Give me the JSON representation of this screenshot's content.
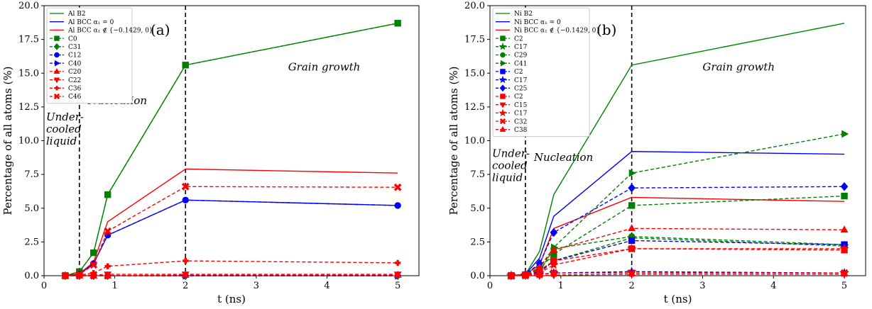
{
  "chart_data": [
    {
      "type": "line",
      "panel_label": "(a)",
      "xlabel": "t (ns)",
      "ylabel": "Percentage of all atoms (%)",
      "xlim": [
        0,
        5.3
      ],
      "ylim": [
        0,
        20
      ],
      "xticks": [
        0,
        1,
        2,
        3,
        4,
        5
      ],
      "yticks": [
        0.0,
        2.5,
        5.0,
        7.5,
        10.0,
        12.5,
        15.0,
        17.5,
        20.0
      ],
      "vlines": [
        0.5,
        2.0
      ],
      "annotations": [
        {
          "lines": [
            "Under-",
            "cooled",
            "liquid"
          ],
          "x": 0.03,
          "y": 11.5
        },
        {
          "lines": [
            "Nucleation"
          ],
          "x": 0.62,
          "y": 12.7
        },
        {
          "lines": [
            "Grain growth"
          ],
          "x": 3.45,
          "y": 15.2
        }
      ],
      "legend_position": "top-left",
      "series": [
        {
          "name": "Al B2",
          "color": "#008000",
          "dash": false,
          "marker": "none",
          "x": [
            0.3,
            0.5,
            0.7,
            0.9,
            2,
            5
          ],
          "y": [
            0,
            0.3,
            1.7,
            6.0,
            15.6,
            18.7
          ]
        },
        {
          "name": "Al BCC α₁ = 0",
          "color": "#0000ff",
          "dash": false,
          "marker": "none",
          "x": [
            0.3,
            0.5,
            0.7,
            0.9,
            2,
            5
          ],
          "y": [
            0,
            0.1,
            0.9,
            3.0,
            5.6,
            5.2
          ]
        },
        {
          "name": "Al BCC α₁ ∉ {−0.1429, 0}",
          "color": "#ff0000",
          "dash": false,
          "marker": "none",
          "x": [
            0.3,
            0.5,
            0.7,
            0.9,
            2,
            5
          ],
          "y": [
            0,
            0.15,
            1.0,
            4.0,
            7.9,
            7.6
          ]
        },
        {
          "name": "C0",
          "color": "#008000",
          "dash": true,
          "marker": "square",
          "x": [
            0.3,
            0.5,
            0.7,
            0.9,
            2,
            5
          ],
          "y": [
            0,
            0.3,
            1.7,
            6.0,
            15.6,
            18.7
          ]
        },
        {
          "name": "C31",
          "color": "#008000",
          "dash": true,
          "marker": "diamond",
          "x": [
            0.3,
            0.5,
            0.7,
            0.9,
            2,
            5
          ],
          "y": [
            0,
            0,
            0,
            0,
            0,
            0
          ]
        },
        {
          "name": "C12",
          "color": "#0000ff",
          "dash": true,
          "marker": "circle",
          "x": [
            0.3,
            0.5,
            0.7,
            0.9,
            2,
            5
          ],
          "y": [
            0,
            0.1,
            0.9,
            3.0,
            5.6,
            5.2
          ]
        },
        {
          "name": "C40",
          "color": "#0000ff",
          "dash": true,
          "marker": "triangle-right",
          "x": [
            0.3,
            0.5,
            0.7,
            0.9,
            2,
            5
          ],
          "y": [
            0,
            0,
            0,
            0,
            0,
            0
          ]
        },
        {
          "name": "C20",
          "color": "#ff0000",
          "dash": true,
          "marker": "triangle-up",
          "x": [
            0.3,
            0.5,
            0.7,
            0.9,
            2,
            5
          ],
          "y": [
            0,
            0,
            0,
            0,
            0.05,
            0.05
          ]
        },
        {
          "name": "C22",
          "color": "#ff0000",
          "dash": true,
          "marker": "triangle-down",
          "x": [
            0.3,
            0.5,
            0.7,
            0.9,
            2,
            5
          ],
          "y": [
            0,
            0.02,
            0.05,
            0.1,
            0.1,
            0.1
          ]
        },
        {
          "name": "C36",
          "color": "#ff0000",
          "dash": true,
          "marker": "plus",
          "x": [
            0.3,
            0.5,
            0.7,
            0.9,
            2,
            5
          ],
          "y": [
            0,
            0.05,
            0.2,
            0.7,
            1.1,
            0.95
          ]
        },
        {
          "name": "C46",
          "color": "#ff0000",
          "dash": true,
          "marker": "x",
          "x": [
            0.3,
            0.5,
            0.7,
            0.9,
            2,
            5
          ],
          "y": [
            0,
            0.1,
            0.8,
            3.3,
            6.6,
            6.55
          ]
        }
      ]
    },
    {
      "type": "line",
      "panel_label": "(b)",
      "xlabel": "t (ns)",
      "ylabel": "Percentage of all atoms (%)",
      "xlim": [
        0,
        5.3
      ],
      "ylim": [
        0,
        20
      ],
      "xticks": [
        0,
        1,
        2,
        3,
        4,
        5
      ],
      "yticks": [
        0.0,
        2.5,
        5.0,
        7.5,
        10.0,
        12.5,
        15.0,
        17.5,
        20.0
      ],
      "vlines": [
        0.5,
        2.0
      ],
      "annotations": [
        {
          "lines": [
            "Under-",
            "cooled",
            "liquid"
          ],
          "x": 0.03,
          "y": 8.8
        },
        {
          "lines": [
            "Nucleation"
          ],
          "x": 0.62,
          "y": 8.5
        },
        {
          "lines": [
            "Grain growth"
          ],
          "x": 3.0,
          "y": 15.2
        }
      ],
      "legend_position": "top-left",
      "series": [
        {
          "name": "Ni B2",
          "color": "#008000",
          "dash": false,
          "marker": "none",
          "x": [
            0.3,
            0.5,
            0.7,
            0.9,
            2,
            5
          ],
          "y": [
            0,
            0.1,
            1.8,
            6.0,
            15.6,
            18.7
          ]
        },
        {
          "name": "Ni BCC α₁ = 0",
          "color": "#0000ff",
          "dash": false,
          "marker": "none",
          "x": [
            0.3,
            0.5,
            0.7,
            0.9,
            2,
            5
          ],
          "y": [
            0,
            0.1,
            1.3,
            4.4,
            9.2,
            9.0
          ]
        },
        {
          "name": "Ni BCC α₁ ∉ {−0.1429, 0}",
          "color": "#ff0000",
          "dash": false,
          "marker": "none",
          "x": [
            0.3,
            0.5,
            0.7,
            0.9,
            2,
            5
          ],
          "y": [
            0,
            0.1,
            0.8,
            3.5,
            5.8,
            5.5
          ]
        },
        {
          "name": "C2",
          "color": "#008000",
          "dash": true,
          "marker": "square",
          "x": [
            0.3,
            0.5,
            0.7,
            0.9,
            2,
            5
          ],
          "y": [
            0,
            0.05,
            0.5,
            1.6,
            5.2,
            5.9
          ]
        },
        {
          "name": "C17",
          "color": "#008000",
          "dash": true,
          "marker": "star",
          "x": [
            0.3,
            0.5,
            0.7,
            0.9,
            2,
            5
          ],
          "y": [
            0,
            0.02,
            0.2,
            1.1,
            2.8,
            2.2
          ]
        },
        {
          "name": "C29",
          "color": "#008000",
          "dash": true,
          "marker": "circle",
          "x": [
            0.3,
            0.5,
            0.7,
            0.9,
            2,
            5
          ],
          "y": [
            0,
            0.02,
            0.3,
            2.0,
            2.9,
            2.3
          ]
        },
        {
          "name": "C41",
          "color": "#008000",
          "dash": true,
          "marker": "triangle-right",
          "x": [
            0.3,
            0.5,
            0.7,
            0.9,
            2,
            5
          ],
          "y": [
            0,
            0.05,
            0.6,
            2.1,
            7.6,
            10.5
          ]
        },
        {
          "name": "C2",
          "color": "#0000ff",
          "dash": true,
          "marker": "square",
          "x": [
            0.3,
            0.5,
            0.7,
            0.9,
            2,
            5
          ],
          "y": [
            0,
            0.05,
            0.3,
            1.1,
            2.6,
            2.3
          ]
        },
        {
          "name": "C17",
          "color": "#0000ff",
          "dash": true,
          "marker": "star",
          "x": [
            0.3,
            0.5,
            0.7,
            0.9,
            2,
            5
          ],
          "y": [
            0,
            0.02,
            0.1,
            0.2,
            0.3,
            0.2
          ]
        },
        {
          "name": "C25",
          "color": "#0000ff",
          "dash": true,
          "marker": "diamond",
          "x": [
            0.3,
            0.5,
            0.7,
            0.9,
            2,
            5
          ],
          "y": [
            0,
            0.1,
            0.9,
            3.2,
            6.5,
            6.6
          ]
        },
        {
          "name": "C2",
          "color": "#ff0000",
          "dash": true,
          "marker": "square",
          "x": [
            0.3,
            0.5,
            0.7,
            0.9,
            2,
            5
          ],
          "y": [
            0,
            0.05,
            0.4,
            1.1,
            2.0,
            1.9
          ]
        },
        {
          "name": "C15",
          "color": "#ff0000",
          "dash": true,
          "marker": "triangle-down",
          "x": [
            0.3,
            0.5,
            0.7,
            0.9,
            2,
            5
          ],
          "y": [
            0,
            0,
            0,
            0.05,
            0.1,
            0.1
          ]
        },
        {
          "name": "C17",
          "color": "#ff0000",
          "dash": true,
          "marker": "star",
          "x": [
            0.3,
            0.5,
            0.7,
            0.9,
            2,
            5
          ],
          "y": [
            0,
            0.05,
            0.2,
            0.8,
            2.0,
            2.0
          ]
        },
        {
          "name": "C32",
          "color": "#ff0000",
          "dash": true,
          "marker": "x",
          "x": [
            0.3,
            0.5,
            0.7,
            0.9,
            2,
            5
          ],
          "y": [
            0,
            0.02,
            0.1,
            0.2,
            0.2,
            0.2
          ]
        },
        {
          "name": "C38",
          "color": "#ff0000",
          "dash": true,
          "marker": "triangle-up",
          "x": [
            0.3,
            0.5,
            0.7,
            0.9,
            2,
            5
          ],
          "y": [
            0,
            0.1,
            0.6,
            1.9,
            3.5,
            3.4
          ]
        }
      ]
    }
  ]
}
